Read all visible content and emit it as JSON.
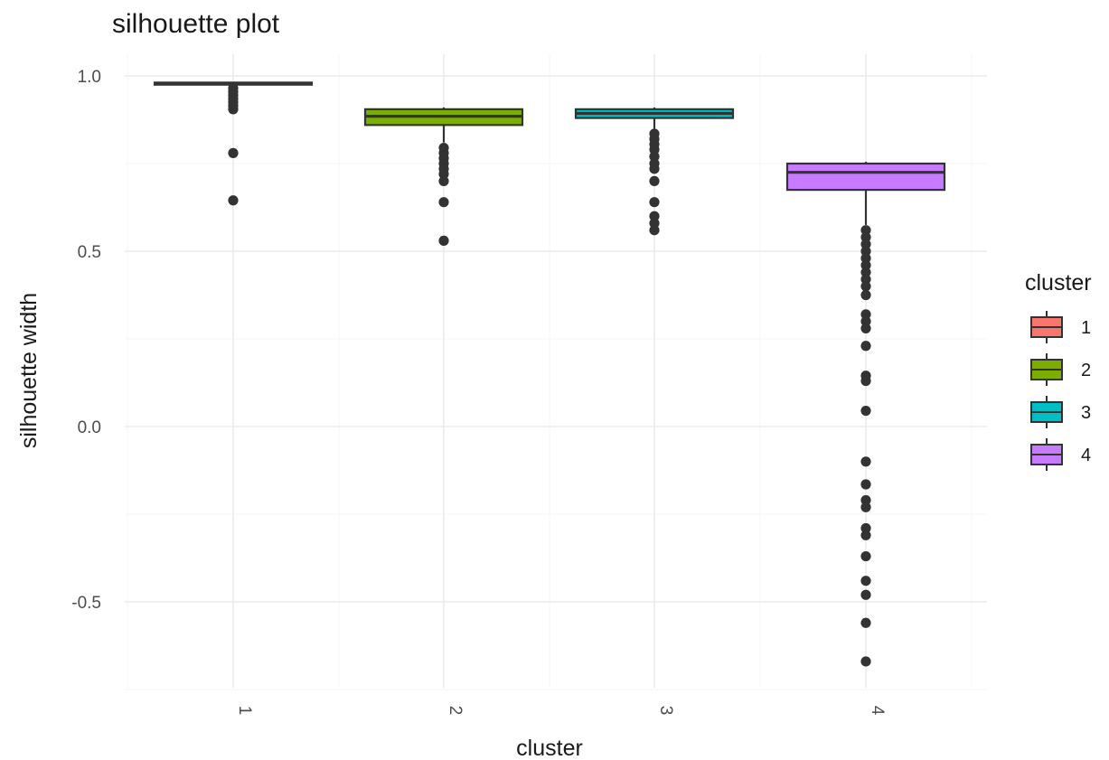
{
  "chart_data": {
    "type": "boxplot",
    "title": "silhouette plot",
    "xlabel": "cluster",
    "ylabel": "silhouette width",
    "ylim": [
      -0.75,
      1.05
    ],
    "yticks": [
      1.0,
      0.5,
      0.0,
      -0.5
    ],
    "ytick_labels": [
      "1.0",
      "0.5",
      "0.0",
      "-0.5"
    ],
    "grid": true,
    "legend": {
      "title": "cluster",
      "placement": "right"
    },
    "series": [
      {
        "category": "1",
        "legend_label": "1",
        "color": "#F8766D",
        "q1": 0.975,
        "median": 0.978,
        "q3": 0.981,
        "whisker_low": 0.97,
        "whisker_high": 0.983,
        "outliers": [
          0.965,
          0.955,
          0.945,
          0.935,
          0.925,
          0.915,
          0.905,
          0.78,
          0.645
        ]
      },
      {
        "category": "2",
        "legend_label": "2",
        "color": "#7CAE00",
        "q1": 0.86,
        "median": 0.885,
        "q3": 0.905,
        "whisker_low": 0.81,
        "whisker_high": 0.91,
        "outliers": [
          0.795,
          0.78,
          0.765,
          0.75,
          0.735,
          0.72,
          0.7,
          0.64,
          0.53
        ]
      },
      {
        "category": "3",
        "legend_label": "3",
        "color": "#00BFC4",
        "q1": 0.88,
        "median": 0.893,
        "q3": 0.905,
        "whisker_low": 0.845,
        "whisker_high": 0.91,
        "outliers": [
          0.835,
          0.82,
          0.805,
          0.79,
          0.77,
          0.75,
          0.735,
          0.7,
          0.64,
          0.6,
          0.58,
          0.56
        ]
      },
      {
        "category": "4",
        "legend_label": "4",
        "color": "#C77CFF",
        "q1": 0.675,
        "median": 0.725,
        "q3": 0.75,
        "whisker_low": 0.575,
        "whisker_high": 0.755,
        "outliers": [
          0.56,
          0.54,
          0.52,
          0.5,
          0.48,
          0.46,
          0.44,
          0.42,
          0.4,
          0.375,
          0.32,
          0.3,
          0.28,
          0.23,
          0.145,
          0.13,
          0.045,
          -0.1,
          -0.165,
          -0.21,
          -0.23,
          -0.29,
          -0.31,
          -0.37,
          -0.44,
          -0.48,
          -0.56,
          -0.67
        ]
      }
    ]
  }
}
